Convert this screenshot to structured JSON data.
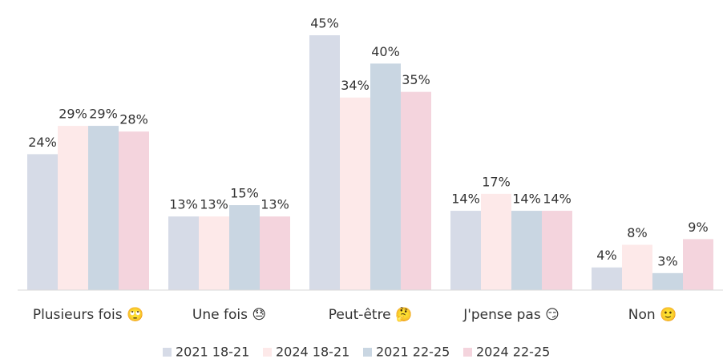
{
  "chart_data": {
    "type": "bar",
    "categories": [
      "Plusieurs fois 🙄",
      "Une fois 😓",
      "Peut-être 🤔",
      "J'pense pas 😏",
      "Non 🙂"
    ],
    "series": [
      {
        "name": "2021 18-21",
        "color": "#d6dbe7",
        "values": [
          24,
          13,
          45,
          14,
          4
        ],
        "value_labels": [
          "24%",
          "13%",
          "45%",
          "14%",
          "4%"
        ]
      },
      {
        "name": "2024 18-21",
        "color": "#fde9e9",
        "values": [
          29,
          13,
          34,
          17,
          8
        ],
        "value_labels": [
          "29%",
          "13%",
          "34%",
          "17%",
          "8%"
        ]
      },
      {
        "name": "2021 22-25",
        "color": "#c9d6e2",
        "values": [
          29,
          15,
          40,
          14,
          3
        ],
        "value_labels": [
          "29%",
          "15%",
          "40%",
          "14%",
          "3%"
        ]
      },
      {
        "name": "2024 22-25",
        "color": "#f4d4dd",
        "values": [
          28,
          13,
          35,
          14,
          9
        ],
        "value_labels": [
          "28%",
          "13%",
          "35%",
          "14%",
          "9%"
        ]
      }
    ],
    "legend": "bottom"
  }
}
